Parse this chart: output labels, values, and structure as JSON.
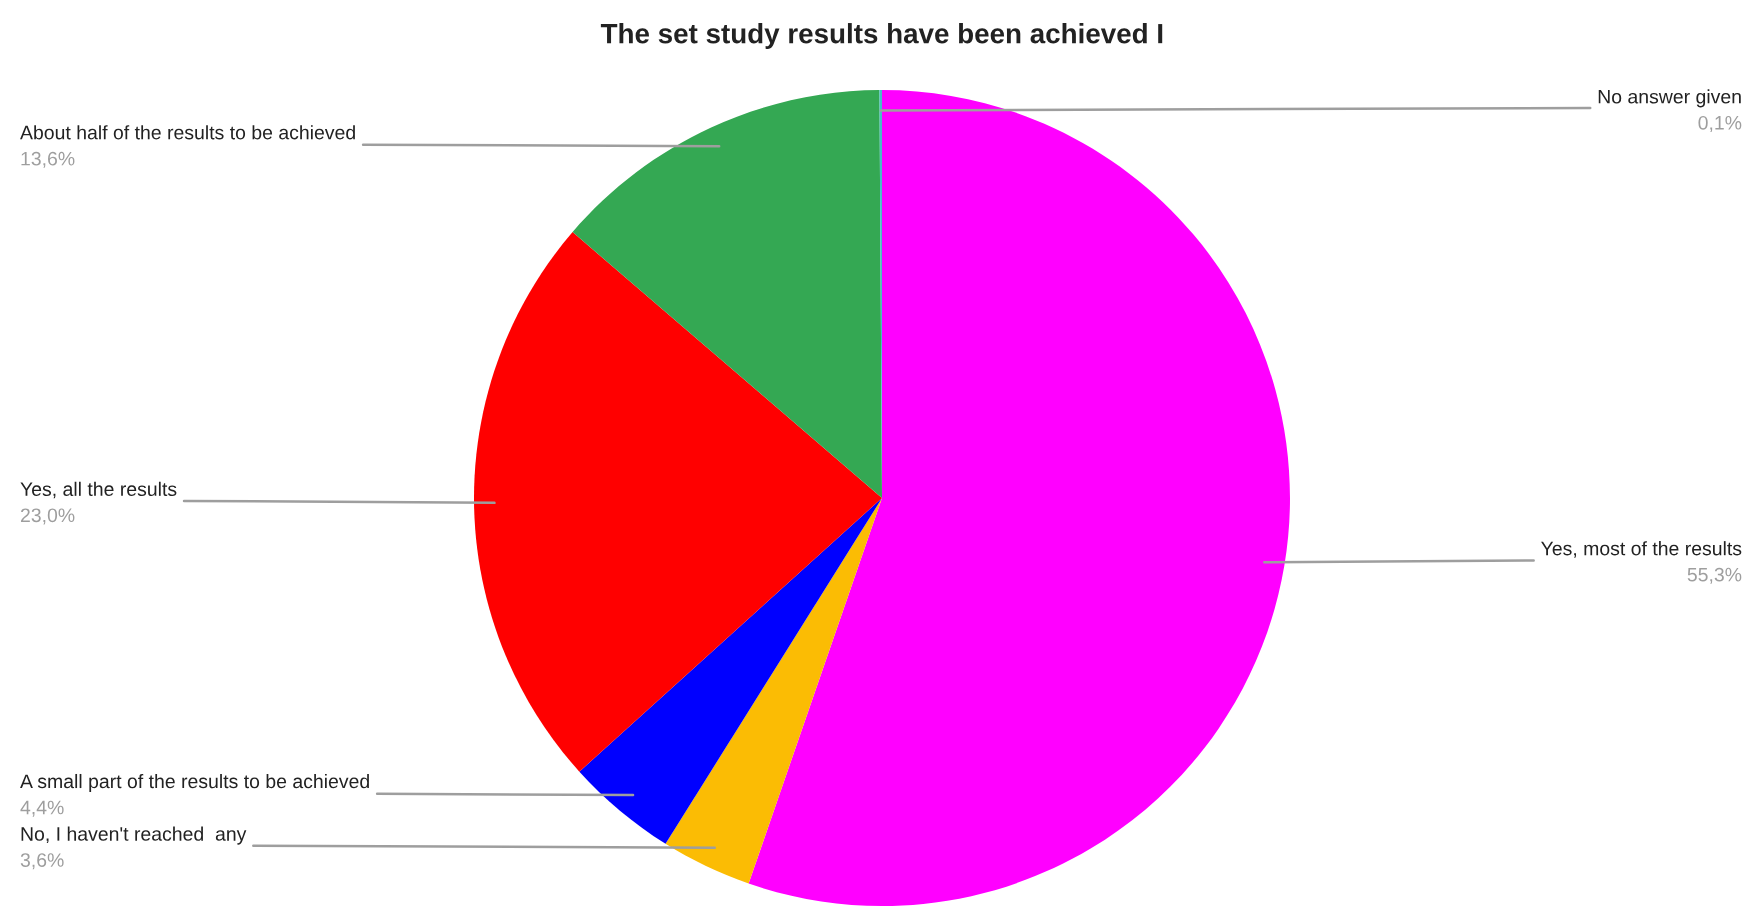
{
  "chart_data": {
    "type": "pie",
    "title": "The set study results have been achieved I",
    "categories": [
      "Yes, most of the results",
      "No, I haven't reached  any",
      "A small part of the results to be achieved",
      "Yes, all the results",
      "About half of the results to be achieved",
      "No answer given"
    ],
    "values": [
      55.3,
      3.6,
      4.4,
      23.0,
      13.6,
      0.1
    ],
    "colors": [
      "#ff00ff",
      "#fbbc04",
      "#0000ff",
      "#ff0000",
      "#34a853",
      "#46bdc6"
    ],
    "value_labels": [
      "55,3%",
      "3,6%",
      "4,4%",
      "23,0%",
      "13,6%",
      "0,1%"
    ]
  }
}
